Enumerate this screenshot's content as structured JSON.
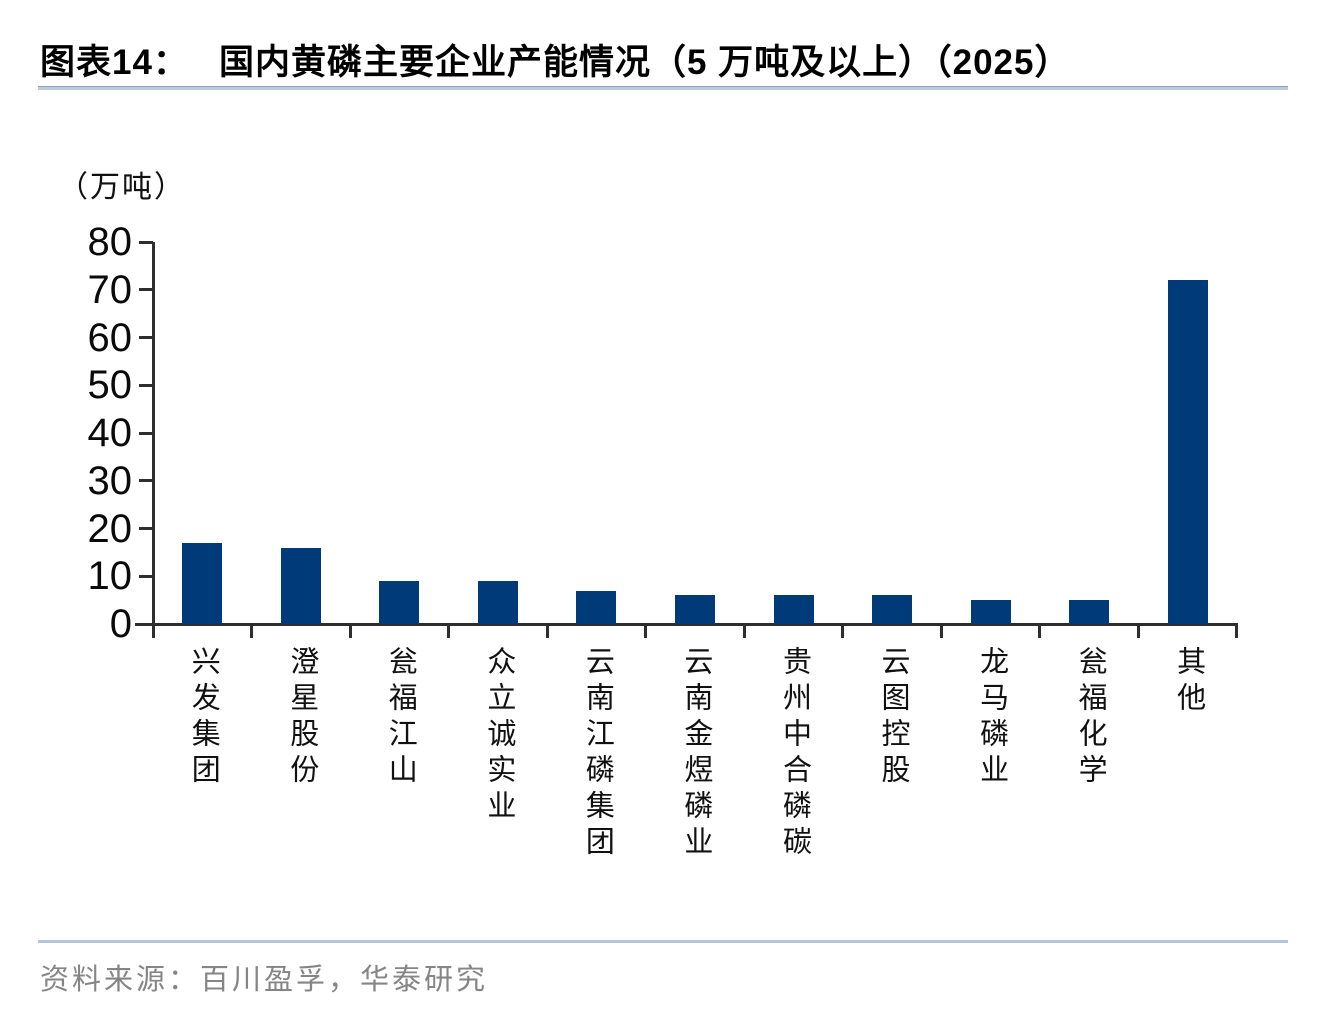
{
  "figure": {
    "label": "图表14：",
    "title": "国内黄磷主要企业产能情况（5 万吨及以上）（2025）"
  },
  "chart_data": {
    "type": "bar",
    "title": "国内黄磷主要企业产能情况（5 万吨及以上）（2025）",
    "unit_label": "（万吨）",
    "categories": [
      "兴发集团",
      "澄星股份",
      "瓮福江山",
      "众立诚实业",
      "云南江磷集团",
      "云南金煜磷业",
      "贵州中合磷碳",
      "云图控股",
      "龙马磷业",
      "瓮福化学",
      "其他"
    ],
    "values": [
      17,
      16,
      9,
      9,
      7,
      6,
      6,
      6,
      5,
      5,
      72
    ],
    "xlabel": "",
    "ylabel": "（万吨）",
    "ylim": [
      0,
      80
    ],
    "yticks": [
      0,
      10,
      20,
      30,
      40,
      50,
      60,
      70,
      80
    ],
    "grid": false,
    "legend": "none",
    "bar_color": "#003A78",
    "axis_color": "#2E2E2E"
  },
  "source": {
    "text": "资料来源：百川盈孚，华泰研究"
  }
}
